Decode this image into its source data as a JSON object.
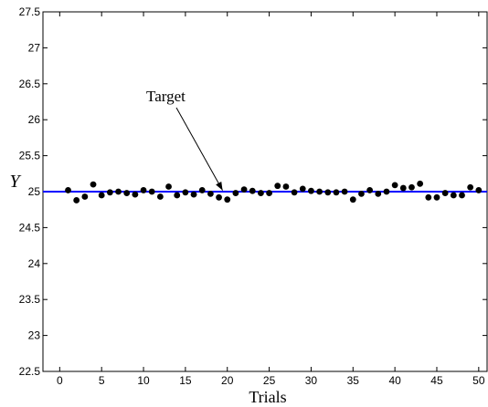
{
  "chart_data": {
    "type": "scatter",
    "title": "",
    "xlabel": "Trials",
    "ylabel": "Y",
    "xlim": [
      -2,
      51
    ],
    "ylim": [
      22.5,
      27.5
    ],
    "x_ticks": [
      "0",
      "5",
      "10",
      "15",
      "20",
      "25",
      "30",
      "35",
      "40",
      "45",
      "50"
    ],
    "y_ticks": [
      "22.5",
      "23",
      "23.5",
      "24",
      "24.5",
      "25",
      "25.5",
      "26",
      "26.5",
      "27",
      "27.5"
    ],
    "grid": false,
    "series": [
      {
        "name": "",
        "marker": "dot",
        "color": "#000000",
        "x": [
          1,
          2,
          3,
          4,
          5,
          6,
          7,
          8,
          9,
          10,
          11,
          12,
          13,
          14,
          15,
          16,
          17,
          18,
          19,
          20,
          21,
          22,
          23,
          24,
          25,
          26,
          27,
          28,
          29,
          30,
          31,
          32,
          33,
          34,
          35,
          36,
          37,
          38,
          39,
          40,
          41,
          42,
          43,
          44,
          45,
          46,
          47,
          48,
          49,
          50
        ],
        "y": [
          25.02,
          24.88,
          24.93,
          25.1,
          24.95,
          24.99,
          25.0,
          24.98,
          24.96,
          25.02,
          25.0,
          24.93,
          25.07,
          24.95,
          24.99,
          24.96,
          25.02,
          24.97,
          24.92,
          24.89,
          24.98,
          25.03,
          25.01,
          24.98,
          24.98,
          25.08,
          25.07,
          24.99,
          25.04,
          25.01,
          25.0,
          24.99,
          24.99,
          25.0,
          24.89,
          24.97,
          25.02,
          24.97,
          25.0,
          25.09,
          25.05,
          25.06,
          25.11,
          24.92,
          24.92,
          24.98,
          24.95,
          24.95,
          25.06,
          25.02
        ]
      }
    ],
    "reference_line": {
      "y": 25,
      "color": "#0000ff"
    },
    "annotation": {
      "text": "Target",
      "arrow_to": {
        "x": 19,
        "y": 24.98
      }
    }
  }
}
